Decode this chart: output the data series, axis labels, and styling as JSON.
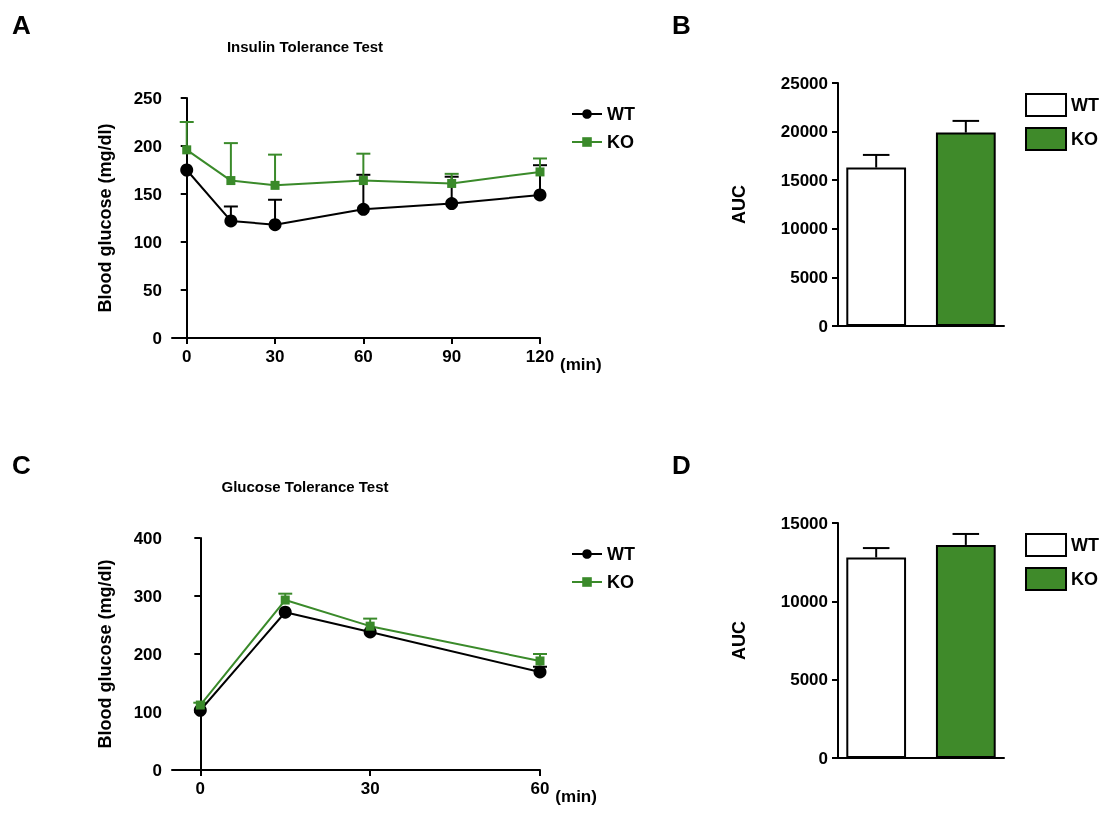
{
  "chart_data": [
    {
      "type": "line",
      "title": "Insulin Tolerance Test",
      "ylabel": "Blood glucose (mg/dl)",
      "xlabel": "(min)",
      "annotations": [
        "A"
      ],
      "x": [
        0,
        15,
        30,
        60,
        90,
        120
      ],
      "xlim": [
        -5,
        120
      ],
      "xticks": [
        0,
        30,
        60,
        90,
        120
      ],
      "ylim": [
        0,
        250
      ],
      "yticks": [
        0,
        50,
        100,
        150,
        200,
        250
      ],
      "legend": "top right",
      "grid": false,
      "series": [
        {
          "name": "WT",
          "color": "#000000",
          "marker": "circle",
          "values": [
            175,
            122,
            118,
            134,
            140,
            149
          ],
          "errors": [
            null,
            [
              122,
              137
            ],
            [
              118,
              144
            ],
            [
              134,
              170
            ],
            [
              140,
              168
            ],
            [
              149,
              180
            ]
          ]
        },
        {
          "name": "KO",
          "color": "#3a8a2a",
          "marker": "square",
          "values": [
            196,
            164,
            159,
            164,
            161,
            173
          ],
          "errors": [
            [
              196,
              225
            ],
            [
              164,
              203
            ],
            [
              159,
              191
            ],
            [
              164,
              192
            ],
            [
              161,
              171
            ],
            [
              173,
              187
            ]
          ]
        }
      ]
    },
    {
      "type": "bar",
      "ylabel": "AUC",
      "annotations": [
        "B"
      ],
      "categories": [
        null
      ],
      "ylim": [
        0,
        25000
      ],
      "yticks": [
        0,
        5000,
        10000,
        15000,
        20000,
        25000
      ],
      "legend": "top right",
      "grid": false,
      "series": [
        {
          "name": "WT",
          "color": "#ffffff",
          "values": [
            16300
          ],
          "errors": [
            [
              16300,
              17600
            ]
          ]
        },
        {
          "name": "KO",
          "color": "#3f8a2a",
          "values": [
            19900
          ],
          "errors": [
            [
              19900,
              21100
            ]
          ]
        }
      ]
    },
    {
      "type": "line",
      "title": "Glucose Tolerance Test",
      "ylabel": "Blood glucose (mg/dl)",
      "xlabel": "(min)",
      "annotations": [
        "C"
      ],
      "x": [
        0,
        15,
        30,
        60
      ],
      "xlim": [
        -5,
        60
      ],
      "xticks": [
        0,
        30,
        60
      ],
      "ylim": [
        0,
        400
      ],
      "yticks": [
        0,
        100,
        200,
        300,
        400
      ],
      "legend": "top right",
      "grid": false,
      "series": [
        {
          "name": "WT",
          "color": "#000000",
          "marker": "circle",
          "values": [
            103,
            272,
            238,
            169
          ],
          "errors": [
            null,
            null,
            null,
            [
              169,
              178
            ]
          ]
        },
        {
          "name": "KO",
          "color": "#3a8a2a",
          "marker": "square",
          "values": [
            112,
            293,
            248,
            188
          ],
          "errors": [
            [
              112,
              116
            ],
            [
              293,
              304
            ],
            [
              248,
              261
            ],
            [
              188,
              200
            ]
          ]
        }
      ]
    },
    {
      "type": "bar",
      "ylabel": "AUC",
      "annotations": [
        "D"
      ],
      "categories": [
        null
      ],
      "ylim": [
        0,
        15000
      ],
      "yticks": [
        0,
        5000,
        10000,
        15000
      ],
      "legend": "top right",
      "grid": false,
      "series": [
        {
          "name": "WT",
          "color": "#ffffff",
          "values": [
            12800
          ],
          "errors": [
            [
              12800,
              13400
            ]
          ]
        },
        {
          "name": "KO",
          "color": "#3f8a2a",
          "values": [
            13600
          ],
          "errors": [
            [
              13600,
              14300
            ]
          ]
        }
      ]
    }
  ]
}
